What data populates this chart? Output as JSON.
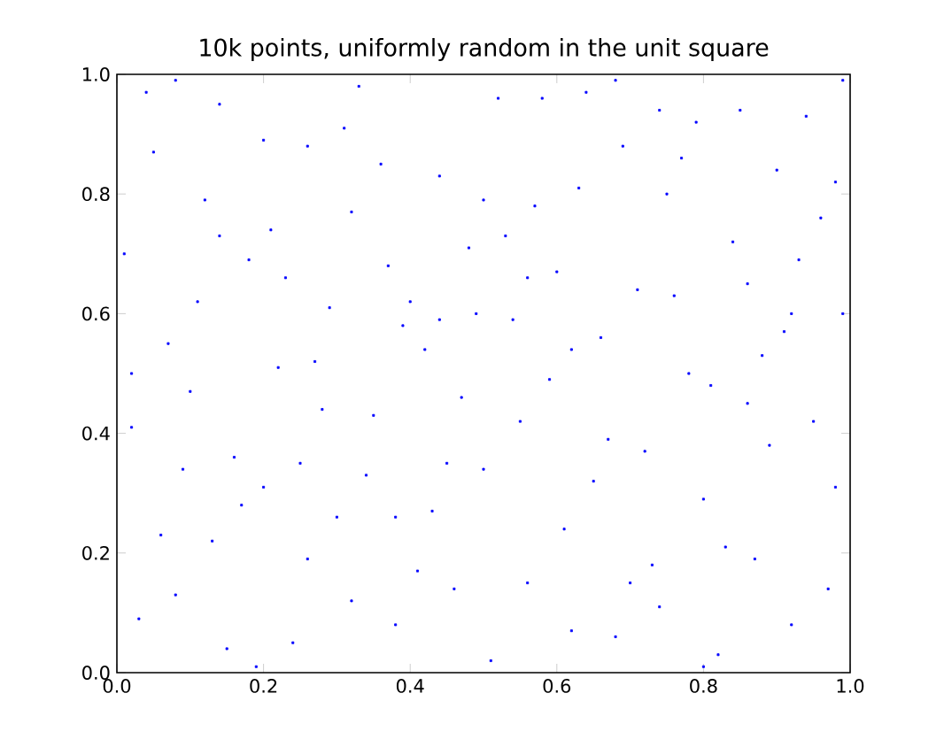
{
  "chart_data": {
    "type": "scatter",
    "title": "10k points, uniformly random in the unit square",
    "series": [
      {
        "color": "#0000ff",
        "x": [
          0.02,
          0.05,
          0.08,
          0.11,
          0.14,
          0.17,
          0.21,
          0.24,
          0.27,
          0.31,
          0.34,
          0.37,
          0.41,
          0.44,
          0.47,
          0.51,
          0.54,
          0.57,
          0.61,
          0.64,
          0.67,
          0.71,
          0.74,
          0.77,
          0.81,
          0.84,
          0.87,
          0.91,
          0.94,
          0.98,
          0.03,
          0.07,
          0.12,
          0.16,
          0.19,
          0.23,
          0.28,
          0.32,
          0.36,
          0.39,
          0.43,
          0.48,
          0.52,
          0.56,
          0.59,
          0.63,
          0.68,
          0.72,
          0.76,
          0.79,
          0.83,
          0.88,
          0.92,
          0.96,
          0.99,
          0.01,
          0.06,
          0.1,
          0.15,
          0.2,
          0.25,
          0.29,
          0.33,
          0.38,
          0.42,
          0.46,
          0.5,
          0.55,
          0.6,
          0.65,
          0.69,
          0.73,
          0.78,
          0.82,
          0.86,
          0.9,
          0.95,
          0.97,
          0.04,
          0.09,
          0.13,
          0.18,
          0.22,
          0.26,
          0.3,
          0.35,
          0.4,
          0.45,
          0.49,
          0.53,
          0.58,
          0.62,
          0.66,
          0.7,
          0.75,
          0.8,
          0.85,
          0.89,
          0.93,
          0.99,
          0.02,
          0.14,
          0.26,
          0.38,
          0.5,
          0.62,
          0.74,
          0.86,
          0.98,
          0.08,
          0.2,
          0.32,
          0.44,
          0.56,
          0.68,
          0.8,
          0.92
        ],
        "values": [
          0.41,
          0.87,
          0.13,
          0.62,
          0.95,
          0.28,
          0.74,
          0.05,
          0.52,
          0.91,
          0.33,
          0.68,
          0.17,
          0.83,
          0.46,
          0.02,
          0.59,
          0.78,
          0.24,
          0.97,
          0.39,
          0.64,
          0.11,
          0.86,
          0.48,
          0.72,
          0.19,
          0.57,
          0.93,
          0.31,
          0.09,
          0.55,
          0.79,
          0.36,
          0.01,
          0.66,
          0.44,
          0.12,
          0.85,
          0.58,
          0.27,
          0.71,
          0.96,
          0.15,
          0.49,
          0.81,
          0.06,
          0.37,
          0.63,
          0.92,
          0.21,
          0.53,
          0.08,
          0.76,
          0.99,
          0.7,
          0.23,
          0.47,
          0.04,
          0.89,
          0.35,
          0.61,
          0.98,
          0.26,
          0.54,
          0.14,
          0.79,
          0.42,
          0.67,
          0.32,
          0.88,
          0.18,
          0.5,
          0.03,
          0.65,
          0.84,
          0.42,
          0.14,
          0.97,
          0.34,
          0.22,
          0.69,
          0.51,
          0.88,
          0.26,
          0.43,
          0.62,
          0.35,
          0.6,
          0.73,
          0.96,
          0.07,
          0.56,
          0.15,
          0.8,
          0.29,
          0.94,
          0.38,
          0.69,
          0.6,
          0.5,
          0.73,
          0.19,
          0.08,
          0.34,
          0.54,
          0.94,
          0.45,
          0.82,
          0.99,
          0.31,
          0.77,
          0.59,
          0.66,
          0.99,
          0.01,
          0.6
        ]
      }
    ],
    "xlim": [
      0,
      1
    ],
    "ylim": [
      0,
      1
    ],
    "xticks": [
      {
        "value": 0,
        "label": "0.0"
      },
      {
        "value": 0.2,
        "label": "0.2"
      },
      {
        "value": 0.4,
        "label": "0.4"
      },
      {
        "value": 0.6,
        "label": "0.6"
      },
      {
        "value": 0.8,
        "label": "0.8"
      },
      {
        "value": 1,
        "label": "1.0"
      }
    ],
    "yticks": [
      {
        "value": 0,
        "label": "0.0"
      },
      {
        "value": 0.2,
        "label": "0.2"
      },
      {
        "value": 0.4,
        "label": "0.4"
      },
      {
        "value": 0.6,
        "label": "0.6"
      },
      {
        "value": 0.8,
        "label": "0.8"
      },
      {
        "value": 1,
        "label": "1.0"
      }
    ],
    "marker": "square"
  }
}
